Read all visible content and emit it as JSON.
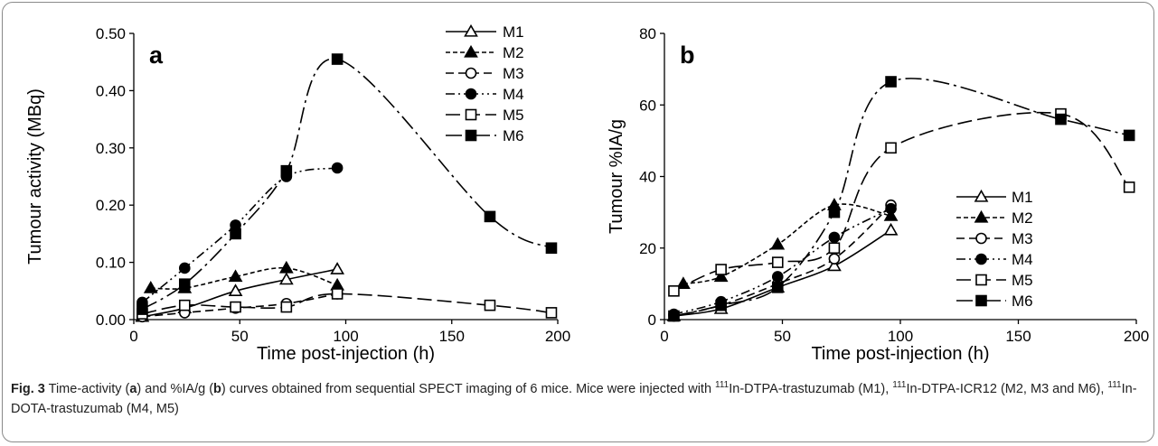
{
  "chart_data": [
    {
      "type": "line",
      "panel_label": "a",
      "xlabel": "Time post-injection (h)",
      "ylabel": "Tumour activity (MBq)",
      "xlim": [
        0,
        200
      ],
      "ylim": [
        0,
        0.5
      ],
      "xticks": [
        0,
        50,
        100,
        150,
        200
      ],
      "xtick_labels": [
        "0",
        "50",
        "100",
        "150",
        "200"
      ],
      "yticks": [
        0,
        0.1,
        0.2,
        0.3,
        0.4,
        0.5
      ],
      "ytick_labels": [
        "0.00",
        "0.10",
        "0.20",
        "0.30",
        "0.40",
        "0.50"
      ],
      "grid": false,
      "legend_position": "top-right",
      "series": [
        {
          "name": "M1",
          "marker": "triangle-open",
          "dash": "solid",
          "x": [
            4,
            24,
            48,
            72,
            96
          ],
          "y": [
            0.005,
            0.02,
            0.05,
            0.07,
            0.088
          ]
        },
        {
          "name": "M2",
          "marker": "triangle-filled",
          "dash": "dash-short",
          "x": [
            8,
            24,
            48,
            72,
            96
          ],
          "y": [
            0.055,
            0.055,
            0.075,
            0.09,
            0.06
          ]
        },
        {
          "name": "M3",
          "marker": "circle-open",
          "dash": "dash-long",
          "x": [
            4,
            24,
            48,
            72,
            96
          ],
          "y": [
            0.005,
            0.012,
            0.02,
            0.028,
            0.045
          ]
        },
        {
          "name": "M4",
          "marker": "circle-filled",
          "dash": "dash-dot-dot",
          "x": [
            4,
            24,
            48,
            72,
            96
          ],
          "y": [
            0.03,
            0.09,
            0.165,
            0.25,
            0.265
          ]
        },
        {
          "name": "M5",
          "marker": "square-open",
          "dash": "long-dash",
          "x": [
            4,
            24,
            48,
            72,
            96,
            168,
            197
          ],
          "y": [
            0.01,
            0.025,
            0.022,
            0.022,
            0.045,
            0.025,
            0.012
          ]
        },
        {
          "name": "M6",
          "marker": "square-filled",
          "dash": "long-dash-dot",
          "x": [
            4,
            24,
            48,
            72,
            96,
            168,
            197
          ],
          "y": [
            0.018,
            0.062,
            0.15,
            0.26,
            0.455,
            0.18,
            0.125
          ]
        }
      ]
    },
    {
      "type": "line",
      "panel_label": "b",
      "xlabel": "Time post-injection (h)",
      "ylabel": "Tumour %IA/g",
      "xlim": [
        0,
        200
      ],
      "ylim": [
        0,
        80
      ],
      "xticks": [
        0,
        50,
        100,
        150,
        200
      ],
      "xtick_labels": [
        "0",
        "50",
        "100",
        "150",
        "200"
      ],
      "yticks": [
        0,
        20,
        40,
        60,
        80
      ],
      "ytick_labels": [
        "0",
        "20",
        "40",
        "60",
        "80"
      ],
      "grid": false,
      "legend_position": "bottom-right",
      "series": [
        {
          "name": "M1",
          "marker": "triangle-open",
          "dash": "solid",
          "x": [
            4,
            24,
            48,
            72,
            96
          ],
          "y": [
            1,
            3,
            9,
            15,
            25
          ]
        },
        {
          "name": "M2",
          "marker": "triangle-filled",
          "dash": "dash-short",
          "x": [
            8,
            24,
            48,
            72,
            96
          ],
          "y": [
            10,
            12,
            21,
            32,
            29
          ]
        },
        {
          "name": "M3",
          "marker": "circle-open",
          "dash": "dash-long",
          "x": [
            4,
            24,
            48,
            72,
            96
          ],
          "y": [
            1,
            4,
            10,
            17,
            32
          ]
        },
        {
          "name": "M4",
          "marker": "circle-filled",
          "dash": "dash-dot-dot",
          "x": [
            4,
            24,
            48,
            72,
            96
          ],
          "y": [
            1.5,
            5,
            12,
            23,
            31
          ]
        },
        {
          "name": "M5",
          "marker": "square-open",
          "dash": "long-dash",
          "x": [
            4,
            24,
            48,
            72,
            96,
            168,
            197
          ],
          "y": [
            8,
            14,
            16,
            20,
            48,
            57.5,
            37
          ]
        },
        {
          "name": "M6",
          "marker": "square-filled",
          "dash": "long-dash-dot",
          "x": [
            4,
            24,
            48,
            72,
            96,
            168,
            197
          ],
          "y": [
            1,
            4,
            9,
            30,
            66.5,
            56,
            51.5
          ]
        }
      ]
    }
  ],
  "caption": {
    "label": "Fig. 3",
    "parts": [
      {
        "t": " Time-activity ("
      },
      {
        "t": "a",
        "b": true
      },
      {
        "t": ") and %IA/g ("
      },
      {
        "t": "b",
        "b": true
      },
      {
        "t": ") curves obtained from sequential SPECT imaging of 6 mice. Mice were injected with "
      },
      {
        "t": "111",
        "sup": true
      },
      {
        "t": "In-DTPA-trastuzumab (M1), "
      },
      {
        "t": "111",
        "sup": true
      },
      {
        "t": "In-DTPA-ICR12 (M2, M3 and M6), "
      },
      {
        "t": "111",
        "sup": true
      },
      {
        "t": "In-DOTA-trastuzumab (M4, M5)"
      }
    ]
  }
}
